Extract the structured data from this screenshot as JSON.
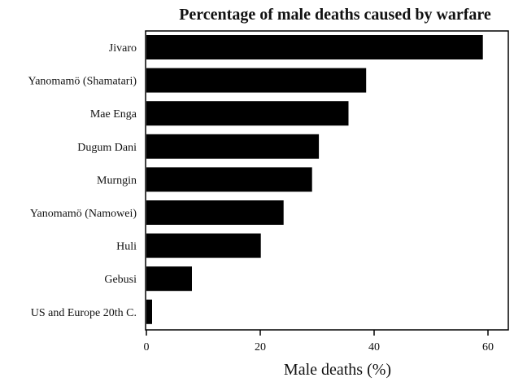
{
  "chart_data": {
    "type": "bar",
    "orientation": "horizontal",
    "title": "Percentage of male deaths caused by warfare",
    "xlabel": "Male deaths (%)",
    "ylabel": "",
    "categories": [
      "Jivaro",
      "Yanomamö (Shamatari)",
      "Mae Enga",
      "Dugum Dani",
      "Murngin",
      "Yanomamö (Namowei)",
      "Huli",
      "Gebusi",
      "US and Europe 20th C."
    ],
    "values": [
      59.1,
      38.6,
      35.5,
      30.3,
      29.1,
      24.1,
      20.1,
      8.0,
      1.0
    ],
    "xlim": [
      0,
      63.5
    ],
    "xticks": [
      "0",
      "20",
      "40",
      "60"
    ],
    "grid": false,
    "bar_color": "#000000"
  }
}
